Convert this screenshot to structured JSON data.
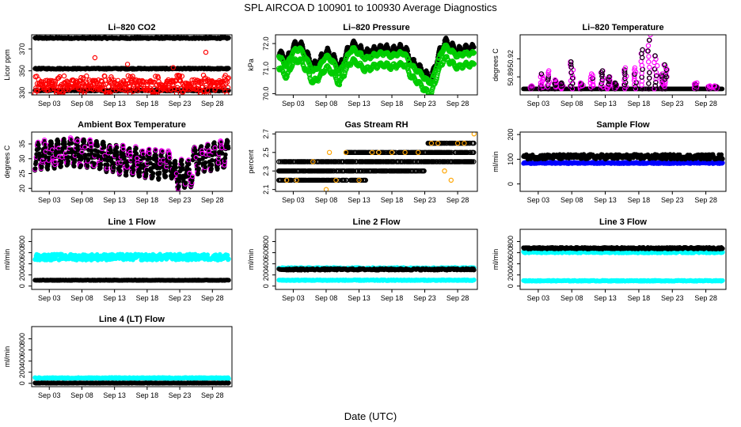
{
  "title": "SPL   AIRCOA D   100901 to 100930   Average Diagnostics",
  "xlabel": "Date (UTC)",
  "x_ticks": [
    "Sep 03",
    "Sep 08",
    "Sep 13",
    "Sep 18",
    "Sep 23",
    "Sep 28"
  ],
  "x_tick_days": [
    3,
    8,
    13,
    18,
    23,
    28
  ],
  "x_range_days": [
    0.3,
    31.0
  ],
  "colors": {
    "black": "#000000",
    "red": "#ff0000",
    "magenta": "#ff00ff",
    "green": "#00cc00",
    "cyan": "#00ffff",
    "blue": "#0000ff",
    "orange": "#ffa500"
  },
  "chart_data": [
    {
      "type": "scatter",
      "title": "Li–820 CO2",
      "ylabel": "Licor ppm",
      "ylim": [
        328,
        383
      ],
      "yticks": [
        "330",
        "350",
        "370"
      ],
      "ytick_values": [
        330,
        350,
        370
      ],
      "series": [
        {
          "name": "reference high",
          "color": "black",
          "style": "band",
          "base": 380,
          "amp": 0.6,
          "x": [
            0.8,
            30.5
          ]
        },
        {
          "name": "reference mid",
          "color": "black",
          "style": "band",
          "base": 352,
          "amp": 0.6,
          "x": [
            0.8,
            30.5
          ]
        },
        {
          "name": "reference low",
          "color": "black",
          "style": "band",
          "base": 332,
          "amp": 0.5,
          "x": [
            0.8,
            30.5
          ]
        },
        {
          "name": "sample",
          "color": "red",
          "style": "noisy",
          "base": 337,
          "amp": 5,
          "x": [
            0.8,
            30.5
          ]
        },
        {
          "name": "sample outliers",
          "color": "red",
          "style": "points",
          "x": [
            10.0,
            27.0,
            15.0,
            22.0
          ],
          "y": [
            362,
            367,
            356,
            353
          ]
        }
      ]
    },
    {
      "type": "scatter",
      "title": "Li–820 Pressure",
      "ylabel": "kPa",
      "ylim": [
        69.95,
        72.35
      ],
      "yticks": [
        "70.0",
        "71.0",
        "72.0"
      ],
      "ytick_values": [
        70.0,
        71.0,
        72.0
      ],
      "series": [
        {
          "name": "black",
          "color": "black",
          "style": "wave",
          "x": [
            0.8,
            30.5
          ],
          "knots_x": [
            0.8,
            2,
            3,
            4,
            5,
            6,
            7,
            8,
            9,
            10,
            11,
            12,
            13,
            14,
            15,
            16,
            17,
            18,
            19,
            20,
            21,
            22,
            23,
            24,
            25,
            26,
            27,
            28,
            29,
            30.5
          ],
          "knots_y": [
            71.7,
            71.3,
            71.9,
            72.0,
            71.6,
            71.1,
            71.3,
            71.7,
            71.5,
            71.0,
            71.6,
            72.0,
            71.8,
            71.6,
            71.7,
            71.8,
            71.8,
            71.7,
            71.8,
            71.8,
            71.3,
            71.1,
            70.8,
            70.6,
            71.5,
            72.1,
            71.9,
            71.7,
            71.8,
            71.8
          ],
          "offset": 0.0,
          "amp": 0.15
        },
        {
          "name": "green upper",
          "color": "green",
          "style": "wave",
          "x": [
            0.8,
            30.5
          ],
          "offset": -0.2,
          "amp": 0.05
        },
        {
          "name": "green lower",
          "color": "green",
          "style": "wave",
          "x": [
            0.8,
            30.5
          ],
          "offset": -0.65,
          "amp": 0.08
        }
      ]
    },
    {
      "type": "scatter",
      "title": "Li–820 Temperature",
      "ylabel": "degrees C",
      "ylim": [
        50.86,
        50.96
      ],
      "yticks": [
        "50.89",
        "50.92"
      ],
      "ytick_values": [
        50.89,
        50.92
      ],
      "series": [
        {
          "name": "spikes",
          "color": "magenta",
          "style": "spikes",
          "base": 50.87,
          "x": [
            0.8,
            30.5
          ],
          "spike_x": [
            2.0,
            3.5,
            4.5,
            5.5,
            6.5,
            8.0,
            9.5,
            11.0,
            12.5,
            13.5,
            14.5,
            16.0,
            17.5,
            18.5,
            19.5,
            20.5,
            21.5,
            22.0,
            26.5,
            28.5,
            29.5
          ],
          "spike_y": [
            50.875,
            50.895,
            50.9,
            50.885,
            50.88,
            50.915,
            50.88,
            50.895,
            50.9,
            50.89,
            50.88,
            50.905,
            50.905,
            50.935,
            50.96,
            50.925,
            50.895,
            50.91,
            50.88,
            50.875,
            50.875
          ]
        }
      ]
    },
    {
      "type": "scatter",
      "title": "Ambient Box Temperature",
      "ylabel": "degrees C",
      "ylim": [
        19,
        39
      ],
      "yticks": [
        "20",
        "25",
        "30",
        "35"
      ],
      "ytick_values": [
        20,
        25,
        30,
        35
      ],
      "series": [
        {
          "name": "ambient",
          "color": "black",
          "style": "diurnal",
          "x": [
            0.8,
            30.5
          ],
          "mean": 30,
          "amp": 4.5
        }
      ]
    },
    {
      "type": "scatter",
      "title": "Gas Stream RH",
      "ylabel": "percent",
      "ylim": [
        2.08,
        2.72
      ],
      "yticks": [
        "2.1",
        "2.3",
        "2.5",
        "2.7"
      ],
      "ytick_values": [
        2.1,
        2.3,
        2.5,
        2.7
      ],
      "series": [
        {
          "name": "level 2.3",
          "color": "black",
          "style": "level",
          "y": 2.3,
          "x": [
            0.8,
            23.0
          ]
        },
        {
          "name": "level 2.4",
          "color": "black",
          "style": "level",
          "y": 2.4,
          "x": [
            0.8,
            30.5
          ]
        },
        {
          "name": "level 2.5",
          "color": "black",
          "style": "level",
          "y": 2.5,
          "x": [
            11.0,
            30.5
          ]
        },
        {
          "name": "level 2.6",
          "color": "black",
          "style": "level",
          "y": 2.6,
          "x": [
            23.5,
            30.5
          ]
        },
        {
          "name": "level 2.2",
          "color": "black",
          "style": "level",
          "y": 2.2,
          "x": [
            0.8,
            14.0
          ]
        },
        {
          "name": "orange",
          "color": "orange",
          "style": "points",
          "x": [
            2.0,
            3.5,
            6.0,
            8.0,
            8.5,
            9.5,
            11.0,
            13.0,
            15.0,
            16.0,
            18.0,
            20.0,
            22.0,
            24.0,
            25.0,
            26.0,
            27.0,
            28.0,
            29.0,
            30.5
          ],
          "y": [
            2.2,
            2.2,
            2.4,
            2.1,
            2.5,
            2.2,
            2.5,
            2.2,
            2.5,
            2.5,
            2.5,
            2.5,
            2.5,
            2.6,
            2.6,
            2.3,
            2.2,
            2.6,
            2.6,
            2.7
          ]
        }
      ]
    },
    {
      "type": "scatter",
      "title": "Sample Flow",
      "ylabel": "ml/min",
      "ylim": [
        -30,
        210
      ],
      "yticks": [
        "0",
        "100",
        "200"
      ],
      "ytick_values": [
        0,
        100,
        200
      ],
      "series": [
        {
          "name": "blue",
          "color": "blue",
          "style": "band",
          "base": 85,
          "amp": 3,
          "x": [
            0.8,
            30.5
          ]
        },
        {
          "name": "black",
          "color": "black",
          "style": "band",
          "base": 110,
          "amp": 10,
          "x": [
            0.8,
            30.5
          ]
        }
      ]
    },
    {
      "type": "scatter",
      "title": "Line 1 Flow",
      "ylabel": "ml/min",
      "ylim": [
        -60,
        1020
      ],
      "yticks": [
        "0",
        "200",
        "400",
        "600",
        "800"
      ],
      "ytick_values": [
        0,
        200,
        400,
        600,
        800
      ],
      "series": [
        {
          "name": "cyan",
          "color": "cyan",
          "style": "band",
          "base": 520,
          "amp": 55,
          "x": [
            0.8,
            30.5
          ]
        },
        {
          "name": "black",
          "color": "black",
          "style": "band",
          "base": 105,
          "amp": 5,
          "x": [
            0.8,
            30.5
          ]
        }
      ]
    },
    {
      "type": "scatter",
      "title": "Line 2 Flow",
      "ylabel": "ml/min",
      "ylim": [
        -60,
        1020
      ],
      "yticks": [
        "0",
        "200",
        "400",
        "600",
        "800"
      ],
      "ytick_values": [
        0,
        200,
        400,
        600,
        800
      ],
      "series": [
        {
          "name": "cyan high",
          "color": "cyan",
          "style": "band",
          "base": 320,
          "amp": 15,
          "x": [
            0.8,
            30.5
          ]
        },
        {
          "name": "black",
          "color": "black",
          "style": "band",
          "base": 300,
          "amp": 15,
          "x": [
            0.8,
            30.5
          ]
        },
        {
          "name": "cyan low",
          "color": "cyan",
          "style": "band",
          "base": 105,
          "amp": 8,
          "x": [
            0.8,
            30.5
          ]
        }
      ]
    },
    {
      "type": "scatter",
      "title": "Line 3 Flow",
      "ylabel": "ml/min",
      "ylim": [
        -60,
        1020
      ],
      "yticks": [
        "0",
        "200",
        "400",
        "600",
        "800"
      ],
      "ytick_values": [
        0,
        200,
        400,
        600,
        800
      ],
      "series": [
        {
          "name": "cyan high",
          "color": "cyan",
          "style": "band",
          "base": 610,
          "amp": 15,
          "x": [
            0.8,
            30.5
          ]
        },
        {
          "name": "black",
          "color": "black",
          "style": "band",
          "base": 680,
          "amp": 15,
          "x": [
            0.8,
            30.5
          ]
        },
        {
          "name": "cyan low",
          "color": "cyan",
          "style": "band",
          "base": 95,
          "amp": 8,
          "x": [
            0.8,
            30.5
          ]
        }
      ]
    },
    {
      "type": "scatter",
      "title": "Line 4 (LT) Flow",
      "ylabel": "ml/min",
      "ylim": [
        -60,
        1020
      ],
      "yticks": [
        "0",
        "200",
        "400",
        "600",
        "800"
      ],
      "ytick_values": [
        0,
        200,
        400,
        600,
        800
      ],
      "series": [
        {
          "name": "cyan",
          "color": "cyan",
          "style": "band",
          "base": 95,
          "amp": 10,
          "x": [
            0.8,
            30.5
          ]
        },
        {
          "name": "black",
          "color": "black",
          "style": "band",
          "base": 5,
          "amp": 4,
          "x": [
            0.8,
            30.5
          ]
        }
      ]
    }
  ]
}
